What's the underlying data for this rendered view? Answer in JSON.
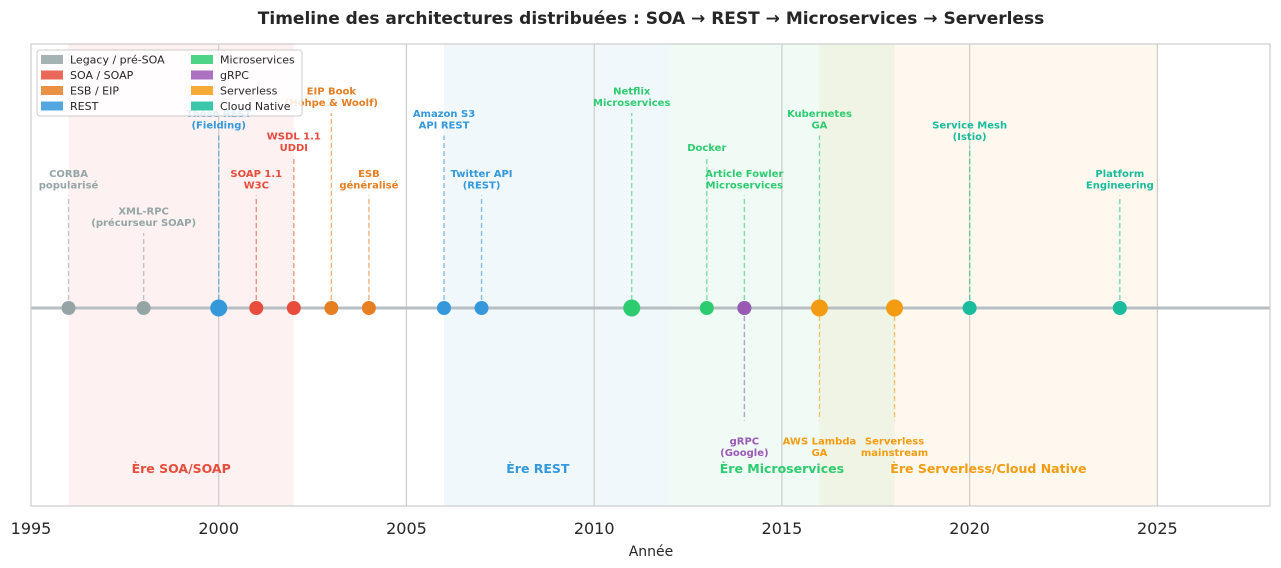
{
  "chart_data": {
    "type": "timeline",
    "title": "Timeline des architectures distribuées : SOA → REST → Microservices → Serverless",
    "xlabel": "Année",
    "xlim": [
      1995,
      2028
    ],
    "xticks": [
      1995,
      2000,
      2005,
      2010,
      2015,
      2020,
      2025
    ],
    "categories": [
      {
        "key": "legacy",
        "label": "Legacy / pré-SOA",
        "color": "#95a5a6"
      },
      {
        "key": "soa",
        "label": "SOA / SOAP",
        "color": "#e74c3c"
      },
      {
        "key": "esb",
        "label": "ESB / EIP",
        "color": "#e67e22"
      },
      {
        "key": "rest",
        "label": "REST",
        "color": "#3498db"
      },
      {
        "key": "micro",
        "label": "Microservices",
        "color": "#2ecc71"
      },
      {
        "key": "grpc",
        "label": "gRPC",
        "color": "#9b59b6"
      },
      {
        "key": "serverless",
        "label": "Serverless",
        "color": "#f39c12"
      },
      {
        "key": "cloud",
        "label": "Cloud Native",
        "color": "#1abc9c"
      }
    ],
    "eras": [
      {
        "label": "Ère SOA/SOAP",
        "start": 1996,
        "end": 2002,
        "color": "#e74c3c",
        "label_x": 1999
      },
      {
        "label": "Ère REST",
        "start": 2006,
        "end": 2012,
        "color": "#3498db",
        "label_x": 2008.5
      },
      {
        "label": "Ère Microservices",
        "start": 2012,
        "end": 2018,
        "color": "#2ecc71",
        "label_x": 2015
      },
      {
        "label": "Ère Serverless/Cloud Native",
        "start": 2016,
        "end": 2025,
        "color": "#f39c12",
        "label_x": 2020.5
      }
    ],
    "events": [
      {
        "year": 1996,
        "label": "CORBA\npopularisé",
        "category": "legacy",
        "level": 3
      },
      {
        "year": 1998,
        "label": "XML-RPC\n(précurseur SOAP)",
        "category": "legacy",
        "level": 2
      },
      {
        "year": 2000,
        "label": "Thèse REST\n(Fielding)",
        "category": "rest",
        "level": 4.6,
        "major": true
      },
      {
        "year": 2001,
        "label": "SOAP 1.1\nW3C",
        "category": "soa",
        "level": 3
      },
      {
        "year": 2002,
        "label": "WSDL 1.1\nUDDI",
        "category": "soa",
        "level": 4
      },
      {
        "year": 2003,
        "label": "EIP Book\n(Hohpe & Woolf)",
        "category": "esb",
        "level": 5.2
      },
      {
        "year": 2004,
        "label": "ESB\ngénéralisé",
        "category": "esb",
        "level": 3
      },
      {
        "year": 2006,
        "label": "Amazon S3\nAPI REST",
        "category": "rest",
        "level": 4.6
      },
      {
        "year": 2007,
        "label": "Twitter API\n(REST)",
        "category": "rest",
        "level": 3
      },
      {
        "year": 2011,
        "label": "Netflix\nMicroservices",
        "category": "micro",
        "level": 5.2,
        "major": true
      },
      {
        "year": 2013,
        "label": "Docker",
        "category": "micro",
        "level": 4
      },
      {
        "year": 2014,
        "label": "Article Fowler\nMicroservices",
        "category": "micro",
        "level": 3
      },
      {
        "year": 2014,
        "label": "gRPC\n(Google)",
        "category": "grpc",
        "level": -3
      },
      {
        "year": 2016,
        "label": "Kubernetes\nGA",
        "category": "micro",
        "level": 4.6
      },
      {
        "year": 2016,
        "label": "AWS Lambda\nGA",
        "category": "serverless",
        "level": -3,
        "major": true
      },
      {
        "year": 2018,
        "label": "Serverless\nmainstream",
        "category": "serverless",
        "level": -3,
        "major": true
      },
      {
        "year": 2020,
        "label": "Service Mesh\n(Istio)",
        "category": "cloud",
        "level": 4.3
      },
      {
        "year": 2024,
        "label": "Platform\nEngineering",
        "category": "cloud",
        "level": 3
      }
    ]
  }
}
